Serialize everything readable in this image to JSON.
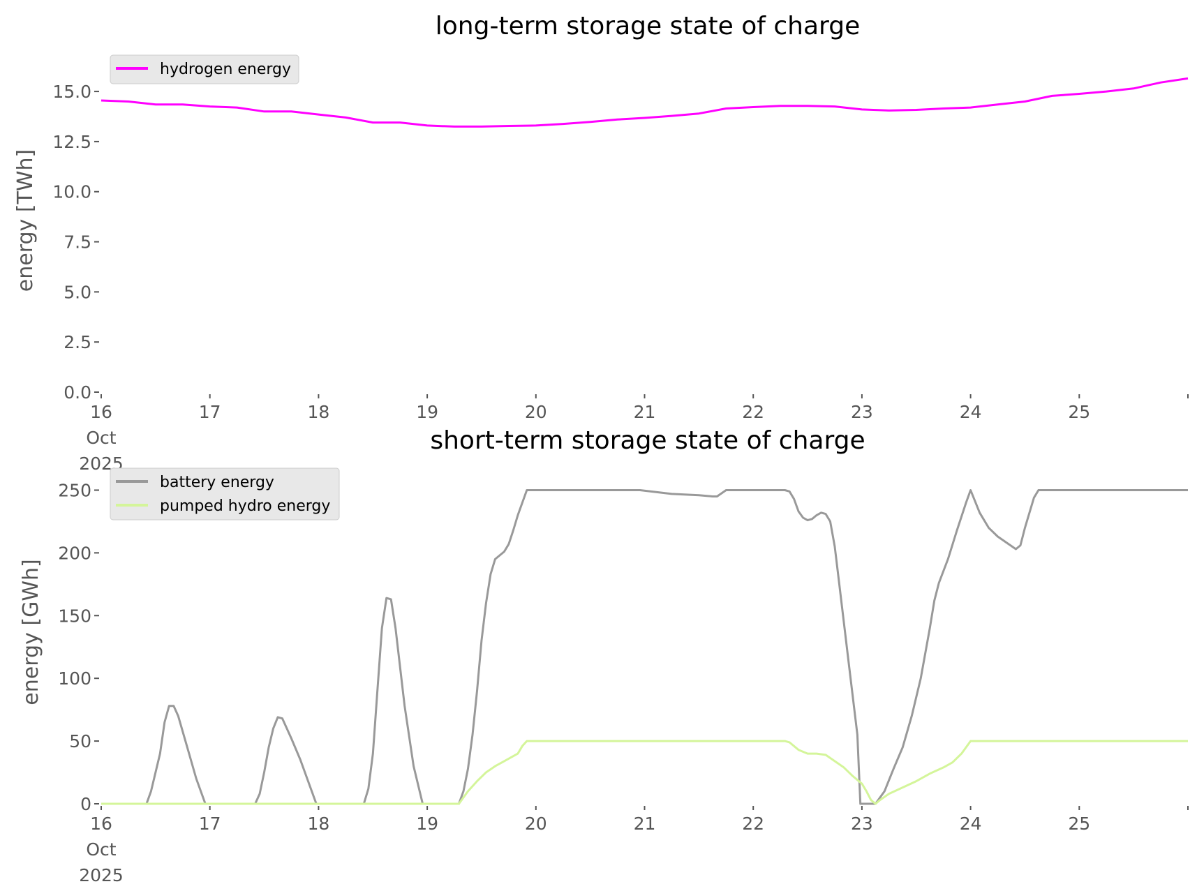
{
  "chart_data": [
    {
      "type": "line",
      "title": "long-term storage state of charge",
      "xlabel": "",
      "ylabel": "energy [TWh]",
      "xlim": [
        "2025-10-16",
        "2025-10-26"
      ],
      "ylim": [
        0,
        16.5
      ],
      "x_ticks": [
        {
          "date": "2025-10-16",
          "label": [
            "16",
            "Oct",
            "2025"
          ]
        },
        {
          "date": "2025-10-17",
          "label": [
            "17"
          ]
        },
        {
          "date": "2025-10-18",
          "label": [
            "18"
          ]
        },
        {
          "date": "2025-10-19",
          "label": [
            "19"
          ]
        },
        {
          "date": "2025-10-20",
          "label": [
            "20"
          ]
        },
        {
          "date": "2025-10-21",
          "label": [
            "21"
          ]
        },
        {
          "date": "2025-10-22",
          "label": [
            "22"
          ]
        },
        {
          "date": "2025-10-23",
          "label": [
            "23"
          ]
        },
        {
          "date": "2025-10-24",
          "label": [
            "24"
          ]
        },
        {
          "date": "2025-10-25",
          "label": [
            "25"
          ]
        },
        {
          "date": "2025-10-26",
          "label": [
            ""
          ]
        }
      ],
      "y_ticks": [
        {
          "value": 0,
          "label": "0.0"
        },
        {
          "value": 2.5,
          "label": "2.5"
        },
        {
          "value": 5,
          "label": "5.0"
        },
        {
          "value": 7.5,
          "label": "7.5"
        },
        {
          "value": 10,
          "label": "10.0"
        },
        {
          "value": 12.5,
          "label": "12.5"
        },
        {
          "value": 15,
          "label": "15.0"
        }
      ],
      "grid": false,
      "legend_position": "top-left",
      "series": [
        {
          "name": "hydrogen energy",
          "color": "#ff00ff",
          "points": [
            [
              "2025-10-16T00:00",
              14.55
            ],
            [
              "2025-10-16T06:00",
              14.5
            ],
            [
              "2025-10-16T12:00",
              14.35
            ],
            [
              "2025-10-16T18:00",
              14.35
            ],
            [
              "2025-10-17T00:00",
              14.25
            ],
            [
              "2025-10-17T06:00",
              14.2
            ],
            [
              "2025-10-17T12:00",
              14.0
            ],
            [
              "2025-10-17T18:00",
              14.0
            ],
            [
              "2025-10-18T00:00",
              13.85
            ],
            [
              "2025-10-18T06:00",
              13.7
            ],
            [
              "2025-10-18T12:00",
              13.45
            ],
            [
              "2025-10-18T18:00",
              13.45
            ],
            [
              "2025-10-19T00:00",
              13.3
            ],
            [
              "2025-10-19T06:00",
              13.25
            ],
            [
              "2025-10-19T12:00",
              13.25
            ],
            [
              "2025-10-19T18:00",
              13.28
            ],
            [
              "2025-10-20T00:00",
              13.3
            ],
            [
              "2025-10-20T06:00",
              13.38
            ],
            [
              "2025-10-20T12:00",
              13.48
            ],
            [
              "2025-10-20T18:00",
              13.6
            ],
            [
              "2025-10-21T00:00",
              13.68
            ],
            [
              "2025-10-21T06:00",
              13.78
            ],
            [
              "2025-10-21T12:00",
              13.9
            ],
            [
              "2025-10-21T18:00",
              14.15
            ],
            [
              "2025-10-22T00:00",
              14.22
            ],
            [
              "2025-10-22T06:00",
              14.28
            ],
            [
              "2025-10-22T12:00",
              14.28
            ],
            [
              "2025-10-22T18:00",
              14.25
            ],
            [
              "2025-10-23T00:00",
              14.1
            ],
            [
              "2025-10-23T06:00",
              14.05
            ],
            [
              "2025-10-23T12:00",
              14.08
            ],
            [
              "2025-10-23T18:00",
              14.15
            ],
            [
              "2025-10-24T00:00",
              14.2
            ],
            [
              "2025-10-24T06:00",
              14.35
            ],
            [
              "2025-10-24T12:00",
              14.5
            ],
            [
              "2025-10-24T18:00",
              14.78
            ],
            [
              "2025-10-25T00:00",
              14.88
            ],
            [
              "2025-10-25T06:00",
              15.0
            ],
            [
              "2025-10-25T12:00",
              15.15
            ],
            [
              "2025-10-25T18:00",
              15.45
            ],
            [
              "2025-10-26T00:00",
              15.65
            ]
          ]
        }
      ]
    },
    {
      "type": "line",
      "title": "short-term storage state of charge",
      "xlabel": "",
      "ylabel": "energy [GWh]",
      "xlim": [
        "2025-10-16",
        "2025-10-26"
      ],
      "ylim": [
        0,
        262.5
      ],
      "x_ticks": [
        {
          "date": "2025-10-16",
          "label": [
            "16",
            "Oct",
            "2025"
          ]
        },
        {
          "date": "2025-10-17",
          "label": [
            "17"
          ]
        },
        {
          "date": "2025-10-18",
          "label": [
            "18"
          ]
        },
        {
          "date": "2025-10-19",
          "label": [
            "19"
          ]
        },
        {
          "date": "2025-10-20",
          "label": [
            "20"
          ]
        },
        {
          "date": "2025-10-21",
          "label": [
            "21"
          ]
        },
        {
          "date": "2025-10-22",
          "label": [
            "22"
          ]
        },
        {
          "date": "2025-10-23",
          "label": [
            "23"
          ]
        },
        {
          "date": "2025-10-24",
          "label": [
            "24"
          ]
        },
        {
          "date": "2025-10-25",
          "label": [
            "25"
          ]
        },
        {
          "date": "2025-10-26",
          "label": [
            ""
          ]
        }
      ],
      "y_ticks": [
        {
          "value": 0,
          "label": "0"
        },
        {
          "value": 50,
          "label": "50"
        },
        {
          "value": 100,
          "label": "100"
        },
        {
          "value": 150,
          "label": "150"
        },
        {
          "value": 200,
          "label": "200"
        },
        {
          "value": 250,
          "label": "250"
        }
      ],
      "grid": false,
      "legend_position": "top-left",
      "series": [
        {
          "name": "battery energy",
          "color": "#999999",
          "points": [
            [
              "2025-10-16T00:00",
              0
            ],
            [
              "2025-10-16T10:00",
              0
            ],
            [
              "2025-10-16T11:00",
              10
            ],
            [
              "2025-10-16T13:00",
              40
            ],
            [
              "2025-10-16T14:00",
              65
            ],
            [
              "2025-10-16T15:00",
              78
            ],
            [
              "2025-10-16T16:00",
              78
            ],
            [
              "2025-10-16T17:00",
              70
            ],
            [
              "2025-10-16T19:00",
              45
            ],
            [
              "2025-10-16T21:00",
              20
            ],
            [
              "2025-10-16T23:00",
              0
            ],
            [
              "2025-10-17T10:00",
              0
            ],
            [
              "2025-10-17T11:00",
              8
            ],
            [
              "2025-10-17T12:00",
              25
            ],
            [
              "2025-10-17T13:00",
              45
            ],
            [
              "2025-10-17T14:00",
              60
            ],
            [
              "2025-10-17T15:00",
              69
            ],
            [
              "2025-10-17T16:00",
              68
            ],
            [
              "2025-10-17T18:00",
              52
            ],
            [
              "2025-10-17T20:00",
              35
            ],
            [
              "2025-10-17T22:00",
              15
            ],
            [
              "2025-10-17T23:30",
              0
            ],
            [
              "2025-10-18T10:00",
              0
            ],
            [
              "2025-10-18T11:00",
              12
            ],
            [
              "2025-10-18T12:00",
              40
            ],
            [
              "2025-10-18T13:00",
              90
            ],
            [
              "2025-10-18T14:00",
              140
            ],
            [
              "2025-10-18T15:00",
              164
            ],
            [
              "2025-10-18T16:00",
              163
            ],
            [
              "2025-10-18T17:00",
              140
            ],
            [
              "2025-10-18T19:00",
              78
            ],
            [
              "2025-10-18T21:00",
              30
            ],
            [
              "2025-10-18T23:00",
              0
            ],
            [
              "2025-10-19T07:00",
              0
            ],
            [
              "2025-10-19T08:00",
              10
            ],
            [
              "2025-10-19T09:00",
              28
            ],
            [
              "2025-10-19T10:00",
              55
            ],
            [
              "2025-10-19T11:00",
              90
            ],
            [
              "2025-10-19T12:00",
              130
            ],
            [
              "2025-10-19T13:00",
              160
            ],
            [
              "2025-10-19T14:00",
              183
            ],
            [
              "2025-10-19T15:00",
              195
            ],
            [
              "2025-10-19T17:00",
              201
            ],
            [
              "2025-10-19T18:00",
              207
            ],
            [
              "2025-10-19T19:00",
              218
            ],
            [
              "2025-10-19T20:00",
              230
            ],
            [
              "2025-10-19T22:00",
              250
            ],
            [
              "2025-10-20T23:00",
              250
            ],
            [
              "2025-10-21T06:00",
              247
            ],
            [
              "2025-10-21T12:00",
              246
            ],
            [
              "2025-10-21T15:00",
              245
            ],
            [
              "2025-10-21T16:00",
              245
            ],
            [
              "2025-10-21T18:00",
              250
            ],
            [
              "2025-10-22T07:00",
              250
            ],
            [
              "2025-10-22T08:00",
              249
            ],
            [
              "2025-10-22T09:00",
              243
            ],
            [
              "2025-10-22T10:00",
              233
            ],
            [
              "2025-10-22T11:00",
              228
            ],
            [
              "2025-10-22T12:00",
              226
            ],
            [
              "2025-10-22T13:00",
              227
            ],
            [
              "2025-10-22T14:00",
              230
            ],
            [
              "2025-10-22T15:00",
              232
            ],
            [
              "2025-10-22T16:00",
              231
            ],
            [
              "2025-10-22T17:00",
              225
            ],
            [
              "2025-10-22T18:00",
              205
            ],
            [
              "2025-10-22T19:00",
              175
            ],
            [
              "2025-10-22T21:00",
              115
            ],
            [
              "2025-10-22T23:00",
              55
            ],
            [
              "2025-10-22T23:40",
              0
            ],
            [
              "2025-10-23T03:00",
              0
            ],
            [
              "2025-10-23T05:00",
              10
            ],
            [
              "2025-10-23T07:00",
              28
            ],
            [
              "2025-10-23T09:00",
              45
            ],
            [
              "2025-10-23T11:00",
              70
            ],
            [
              "2025-10-23T13:00",
              100
            ],
            [
              "2025-10-23T15:00",
              140
            ],
            [
              "2025-10-23T16:00",
              162
            ],
            [
              "2025-10-23T17:00",
              176
            ],
            [
              "2025-10-23T19:00",
              195
            ],
            [
              "2025-10-23T21:00",
              218
            ],
            [
              "2025-10-23T23:00",
              240
            ],
            [
              "2025-10-24T00:00",
              250
            ],
            [
              "2025-10-24T02:00",
              232
            ],
            [
              "2025-10-24T04:00",
              220
            ],
            [
              "2025-10-24T06:00",
              213
            ],
            [
              "2025-10-24T08:00",
              208
            ],
            [
              "2025-10-24T10:00",
              203
            ],
            [
              "2025-10-24T11:00",
              206
            ],
            [
              "2025-10-24T12:00",
              220
            ],
            [
              "2025-10-24T14:00",
              244
            ],
            [
              "2025-10-24T15:00",
              250
            ],
            [
              "2025-10-26T00:00",
              250
            ]
          ]
        },
        {
          "name": "pumped hydro energy",
          "color": "#d4f59a",
          "points": [
            [
              "2025-10-16T00:00",
              0
            ],
            [
              "2025-10-19T07:00",
              0
            ],
            [
              "2025-10-19T09:00",
              10
            ],
            [
              "2025-10-19T11:00",
              18
            ],
            [
              "2025-10-19T13:00",
              25
            ],
            [
              "2025-10-19T15:00",
              30
            ],
            [
              "2025-10-19T17:00",
              34
            ],
            [
              "2025-10-19T19:00",
              38
            ],
            [
              "2025-10-19T20:00",
              40
            ],
            [
              "2025-10-19T21:00",
              46
            ],
            [
              "2025-10-19T22:00",
              50
            ],
            [
              "2025-10-22T07:00",
              50
            ],
            [
              "2025-10-22T08:00",
              49
            ],
            [
              "2025-10-22T10:00",
              43
            ],
            [
              "2025-10-22T12:00",
              40
            ],
            [
              "2025-10-22T14:00",
              40
            ],
            [
              "2025-10-22T16:00",
              39
            ],
            [
              "2025-10-22T18:00",
              34
            ],
            [
              "2025-10-22T20:00",
              29
            ],
            [
              "2025-10-22T22:00",
              22
            ],
            [
              "2025-10-23T00:00",
              16
            ],
            [
              "2025-10-23T01:00",
              10
            ],
            [
              "2025-10-23T02:00",
              3
            ],
            [
              "2025-10-23T03:00",
              0
            ],
            [
              "2025-10-23T04:00",
              3
            ],
            [
              "2025-10-23T06:00",
              8
            ],
            [
              "2025-10-23T09:00",
              13
            ],
            [
              "2025-10-23T12:00",
              18
            ],
            [
              "2025-10-23T15:00",
              24
            ],
            [
              "2025-10-23T18:00",
              29
            ],
            [
              "2025-10-23T20:00",
              33
            ],
            [
              "2025-10-23T22:00",
              40
            ],
            [
              "2025-10-24T00:00",
              50
            ],
            [
              "2025-10-26T00:00",
              50
            ]
          ]
        }
      ]
    }
  ]
}
